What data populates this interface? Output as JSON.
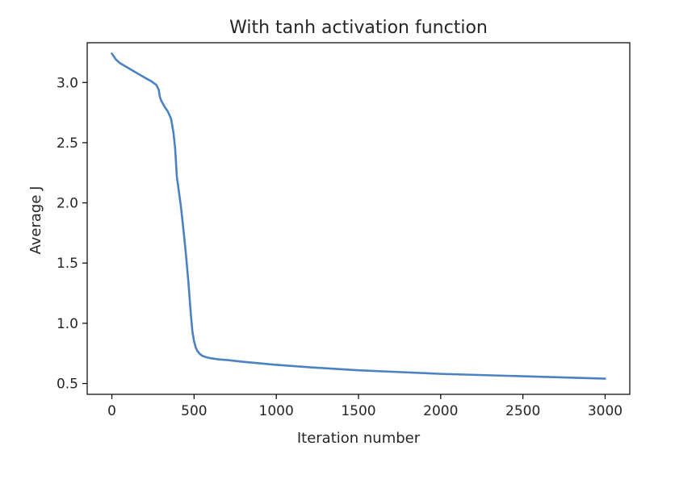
{
  "chart_data": {
    "type": "line",
    "title": "With tanh activation function",
    "xlabel": "Iteration number",
    "ylabel": "Average J",
    "xlim": [
      -150,
      3150
    ],
    "ylim": [
      0.41,
      3.33
    ],
    "xticks": [
      0,
      500,
      1000,
      1500,
      2000,
      2500,
      3000
    ],
    "xtick_labels": [
      "0",
      "500",
      "1000",
      "1500",
      "2000",
      "2500",
      "3000"
    ],
    "yticks": [
      0.5,
      1.0,
      1.5,
      2.0,
      2.5,
      3.0
    ],
    "ytick_labels": [
      "0.5",
      "1.0",
      "1.5",
      "2.0",
      "2.5",
      "3.0"
    ],
    "grid": false,
    "series": [
      {
        "color": "#4c82c1",
        "x": [
          0,
          25,
          50,
          100,
          150,
          200,
          240,
          270,
          285,
          292,
          300,
          320,
          340,
          360,
          375,
          385,
          395,
          405,
          420,
          435,
          450,
          465,
          480,
          490,
          500,
          510,
          520,
          535,
          550,
          570,
          600,
          650,
          700,
          800,
          1000,
          1200,
          1500,
          2000,
          2500,
          3000
        ],
        "y": [
          3.24,
          3.19,
          3.16,
          3.12,
          3.08,
          3.04,
          3.01,
          2.98,
          2.94,
          2.88,
          2.85,
          2.8,
          2.76,
          2.7,
          2.58,
          2.45,
          2.22,
          2.12,
          1.97,
          1.78,
          1.58,
          1.35,
          1.08,
          0.93,
          0.85,
          0.8,
          0.77,
          0.745,
          0.73,
          0.72,
          0.71,
          0.7,
          0.695,
          0.68,
          0.655,
          0.635,
          0.61,
          0.58,
          0.56,
          0.54
        ]
      }
    ]
  }
}
